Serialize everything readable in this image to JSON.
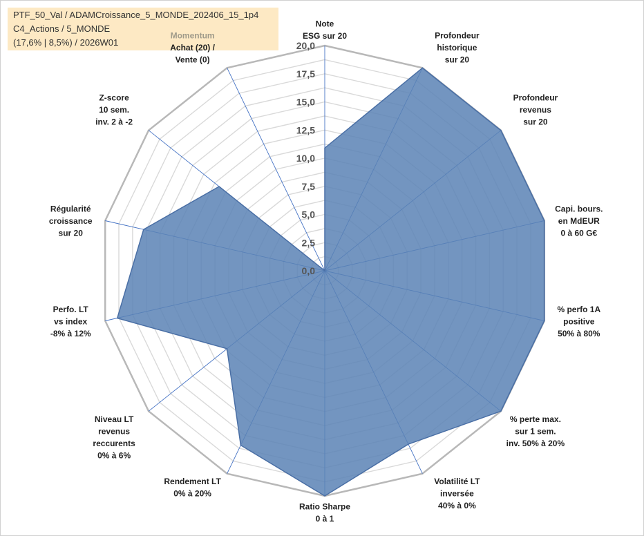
{
  "info": {
    "line1": "PTF_50_Val / ADAMCroissance_5_MONDE_202406_15_1p4",
    "line2": "C4_Actions / 5_MONDE",
    "line3": "(17,6% | 8,5%) / 2026W01"
  },
  "colors": {
    "fill": "#5b82b5",
    "stroke": "#4a6fa5",
    "grid": "#d9d9d9",
    "outer": "#b8b8b8",
    "spoke": "#4472c4"
  },
  "chart_data": {
    "type": "radar",
    "rmax": 20,
    "ticks": [
      "0,0",
      "2,5",
      "5,0",
      "7,5",
      "10,0",
      "12,5",
      "15,0",
      "17,5",
      "20,0"
    ],
    "tick_values": [
      0,
      2.5,
      5,
      7.5,
      10,
      12.5,
      15,
      17.5,
      20
    ],
    "minor_step": 1.25,
    "axes": [
      {
        "lines": [
          "Note",
          "ESG sur 20"
        ],
        "value": 10.9
      },
      {
        "lines": [
          "Profondeur",
          "historique",
          "sur 20"
        ],
        "value": 20
      },
      {
        "lines": [
          "Profondeur",
          "revenus",
          "sur 20"
        ],
        "value": 20
      },
      {
        "lines": [
          "Capi. bours.",
          "en MdEUR",
          "0 à 60 G€"
        ],
        "value": 20
      },
      {
        "lines": [
          "% perfo 1A",
          "positive",
          "50% à 80%"
        ],
        "value": 20
      },
      {
        "lines": [
          "% perte max.",
          "sur 1 sem.",
          "inv. 50% à 20%"
        ],
        "value": 20
      },
      {
        "lines": [
          "Volatilité LT",
          "inversée",
          "40% à 0%"
        ],
        "value": 17.1
      },
      {
        "lines": [
          "Ratio Sharpe",
          "0 à 1"
        ],
        "value": 20
      },
      {
        "lines": [
          "Rendement LT",
          "0% à 20%"
        ],
        "value": 17.2
      },
      {
        "lines": [
          "Niveau LT",
          "revenus",
          "reccurents",
          "0% à 6%"
        ],
        "value": 11.1
      },
      {
        "lines": [
          "Perfo. LT",
          "vs index",
          "-8% à 12%"
        ],
        "value": 18.9
      },
      {
        "lines": [
          "Régularité",
          "croissance",
          "sur 20"
        ],
        "value": 16.5
      },
      {
        "lines": [
          "Z-score",
          "10 sem.",
          "inv. 2 à -2"
        ],
        "value": 12.0
      },
      {
        "lines": [
          "Momentum",
          "Achat (20) /",
          "Vente (0)"
        ],
        "value": 0
      }
    ]
  }
}
